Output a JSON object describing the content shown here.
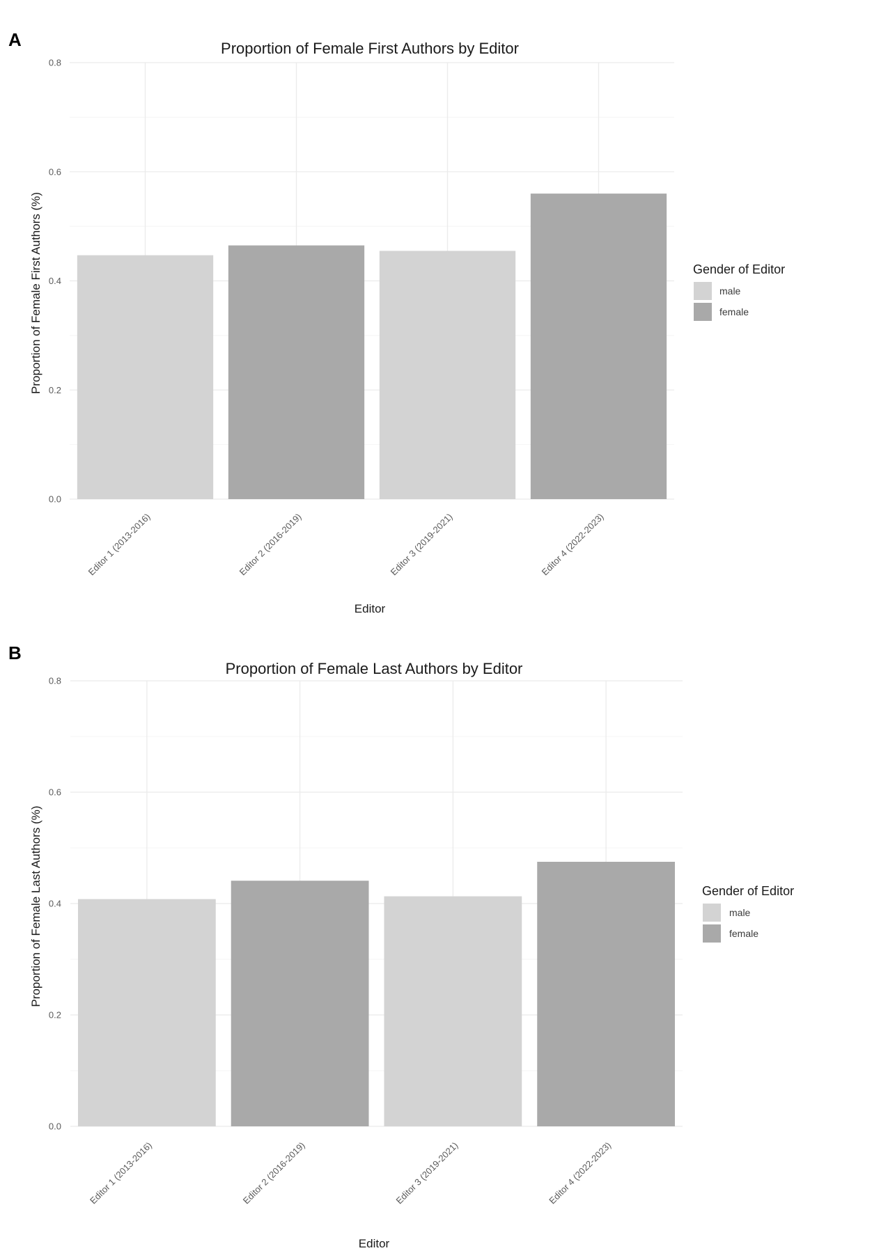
{
  "chart_data": [
    {
      "panel_letter": "A",
      "type": "bar",
      "title": "Proportion of Female First Authors by Editor",
      "xlabel": "Editor",
      "ylabel": "Proportion of Female First Authors (%)",
      "ylim": [
        0,
        0.8
      ],
      "yticks": [
        "0.0",
        "0.2",
        "0.4",
        "0.6",
        "0.8"
      ],
      "grid": true,
      "categories": [
        "Editor 1 (2013-2016)",
        "Editor 2 (2016-2019)",
        "Editor 3 (2019-2021)",
        "Editor 4 (2022-2023)"
      ],
      "values": [
        0.447,
        0.465,
        0.455,
        0.56
      ],
      "gender": [
        "male",
        "female",
        "male",
        "female"
      ],
      "legend": {
        "title": "Gender of Editor",
        "placement": "right",
        "items": [
          {
            "label": "male",
            "color": "#d3d3d3"
          },
          {
            "label": "female",
            "color": "#a9a9a9"
          }
        ]
      }
    },
    {
      "panel_letter": "B",
      "type": "bar",
      "title": "Proportion of Female Last Authors by Editor",
      "xlabel": "Editor",
      "ylabel": "Proportion of Female Last Authors (%)",
      "ylim": [
        0,
        0.8
      ],
      "yticks": [
        "0.0",
        "0.2",
        "0.4",
        "0.6",
        "0.8"
      ],
      "grid": true,
      "categories": [
        "Editor 1 (2013-2016)",
        "Editor 2 (2016-2019)",
        "Editor 3 (2019-2021)",
        "Editor 4 (2022-2023)"
      ],
      "values": [
        0.408,
        0.441,
        0.413,
        0.475
      ],
      "gender": [
        "male",
        "female",
        "male",
        "female"
      ],
      "legend": {
        "title": "Gender of Editor",
        "placement": "right",
        "items": [
          {
            "label": "male",
            "color": "#d3d3d3"
          },
          {
            "label": "female",
            "color": "#a9a9a9"
          }
        ]
      }
    }
  ]
}
